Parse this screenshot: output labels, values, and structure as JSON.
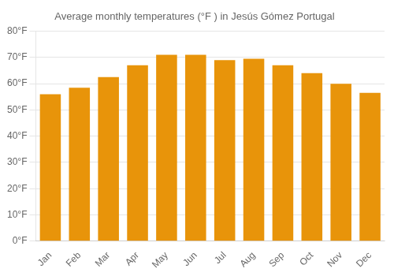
{
  "chart_data": {
    "type": "bar",
    "title": "Average monthly temperatures (°F ) in Jesús Gómez Portugal",
    "categories": [
      "Jan",
      "Feb",
      "Mar",
      "Apr",
      "May",
      "Jun",
      "Jul",
      "Aug",
      "Sep",
      "Oct",
      "Nov",
      "Dec"
    ],
    "values": [
      56,
      58.5,
      62.5,
      67,
      71,
      71,
      69,
      69.5,
      67,
      64,
      60,
      56.5
    ],
    "color": "#E8940A",
    "ylim": [
      0,
      80
    ],
    "yticks": [
      {
        "value": 0,
        "label": "0°F"
      },
      {
        "value": 10,
        "label": "10°F"
      },
      {
        "value": 20,
        "label": "20°F"
      },
      {
        "value": 30,
        "label": "30°F"
      },
      {
        "value": 40,
        "label": "40°F"
      },
      {
        "value": 50,
        "label": "50°F"
      },
      {
        "value": 60,
        "label": "60°F"
      },
      {
        "value": 70,
        "label": "70°F"
      },
      {
        "value": 80,
        "label": "80°F"
      }
    ],
    "grid": true
  }
}
